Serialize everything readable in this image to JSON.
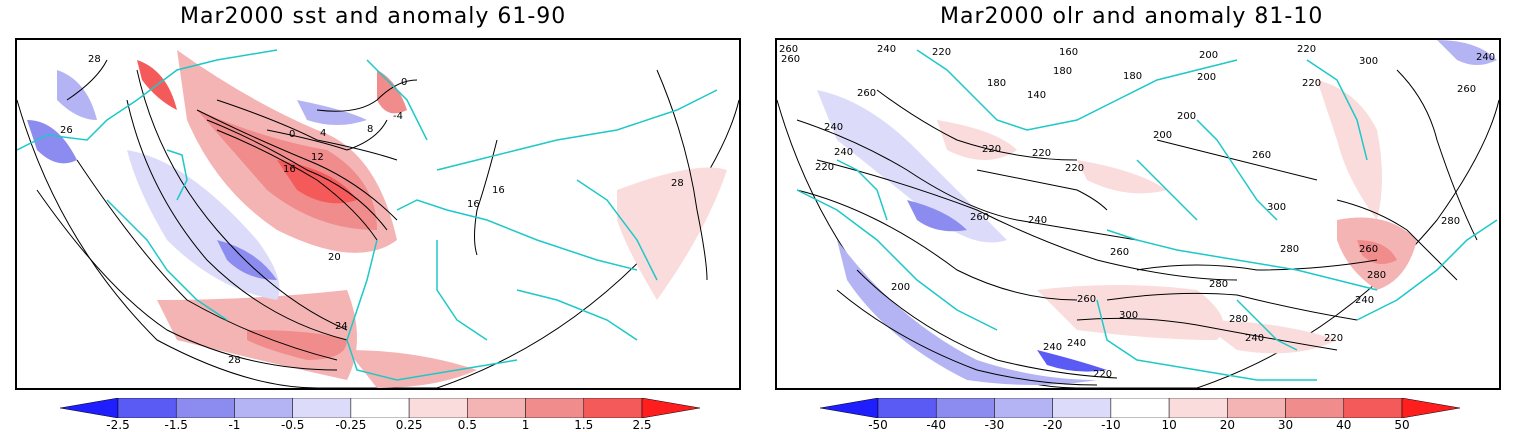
{
  "panels": [
    {
      "title": "Mar2000 sst and anomaly 61-90",
      "contour_labels": [
        "0",
        "4",
        "8",
        "12",
        "16",
        "16",
        "20",
        "24",
        "28",
        "28",
        "26",
        "16",
        "28",
        "-4",
        "0"
      ],
      "colorbar": {
        "labels": [
          "-2.5",
          "-1.5",
          "-1",
          "-0.5",
          "-0.25",
          "0.25",
          "0.5",
          "1",
          "1.5",
          "2.5"
        ],
        "colors": [
          "#1e1eff",
          "#5a5af5",
          "#8c8cf0",
          "#b4b4f5",
          "#dcdcfa",
          "#ffffff",
          "#fadcdc",
          "#f5b4b4",
          "#f08c8c",
          "#f55a5a",
          "#ff1e1e"
        ]
      }
    },
    {
      "title": "Mar2000 olr and anomaly 81-10",
      "contour_labels": [
        "260",
        "260",
        "240",
        "220",
        "180",
        "160",
        "200",
        "220",
        "300",
        "180",
        "140",
        "180",
        "200",
        "200",
        "220",
        "240",
        "260",
        "220",
        "240",
        "220",
        "220",
        "200",
        "220",
        "240",
        "260",
        "260",
        "200",
        "240",
        "260",
        "300",
        "280",
        "280",
        "280",
        "260",
        "280",
        "300",
        "240",
        "220",
        "240",
        "220",
        "260",
        "240",
        "260",
        "280",
        "240"
      ],
      "colorbar": {
        "labels": [
          "-50",
          "-40",
          "-30",
          "-20",
          "-10",
          "10",
          "20",
          "30",
          "40",
          "50"
        ],
        "colors": [
          "#1e1eff",
          "#5a5af5",
          "#8c8cf0",
          "#b4b4f5",
          "#dcdcfa",
          "#ffffff",
          "#fadcdc",
          "#f5b4b4",
          "#f08c8c",
          "#f55a5a",
          "#ff1e1e"
        ]
      }
    }
  ]
}
